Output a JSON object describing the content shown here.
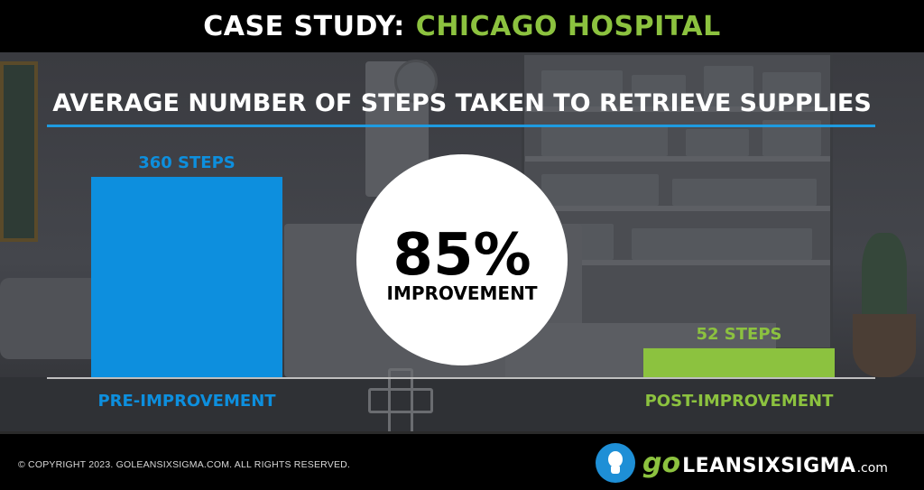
{
  "header": {
    "prefix": "CASE STUDY:",
    "place": "CHICAGO HOSPITAL"
  },
  "chart_data": {
    "type": "bar",
    "title": "AVERAGE NUMBER OF STEPS TAKEN TO RETRIEVE SUPPLIES",
    "categories": [
      "PRE-IMPROVEMENT",
      "POST-IMPROVEMENT"
    ],
    "values": [
      360,
      52
    ],
    "value_labels": [
      "360 STEPS",
      "52 STEPS"
    ],
    "colors": [
      "#0d8fde",
      "#8cc23f"
    ],
    "ylim": [
      0,
      360
    ],
    "grid": false
  },
  "callout": {
    "value": "85%",
    "label": "IMPROVEMENT"
  },
  "footer": {
    "copyright": "© COPYRIGHT 2023. GOLEANSIXSIGMA.COM. ALL RIGHTS RESERVED.",
    "logo_go": "go",
    "logo_main": "LEANSIXSIGMA",
    "logo_com": ".com"
  },
  "colors": {
    "accent_green": "#8cc23f",
    "accent_blue": "#0d8fde",
    "title_rule": "#1e9be0"
  }
}
